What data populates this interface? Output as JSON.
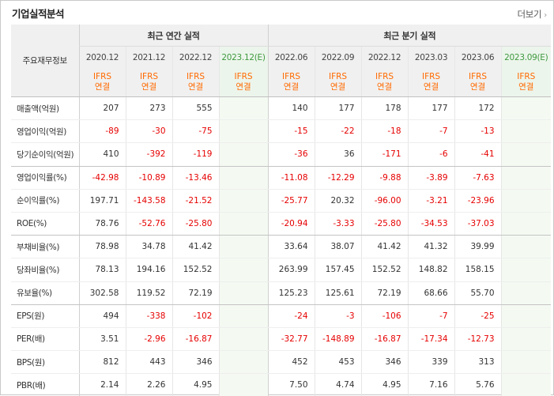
{
  "header": {
    "title": "기업실적분석",
    "more_label": "더보기"
  },
  "table": {
    "row_header_label": "주요재무정보",
    "groups": {
      "annual": "최근 연간 실적",
      "quarterly": "최근 분기 실적"
    },
    "periods": [
      "2020.12",
      "2021.12",
      "2022.12",
      "2023.12(E)",
      "2022.06",
      "2022.09",
      "2022.12",
      "2023.03",
      "2023.06",
      "2023.09(E)"
    ],
    "ifrs_line1": "IFRS",
    "ifrs_line2": "연결",
    "rows": [
      {
        "label": "매출액(억원)",
        "values": [
          "207",
          "273",
          "555",
          "",
          "140",
          "177",
          "178",
          "177",
          "172",
          ""
        ]
      },
      {
        "label": "영업이익(억원)",
        "values": [
          "-89",
          "-30",
          "-75",
          "",
          "-15",
          "-22",
          "-18",
          "-7",
          "-13",
          ""
        ]
      },
      {
        "label": "당기순이익(억원)",
        "values": [
          "410",
          "-392",
          "-119",
          "",
          "-36",
          "36",
          "-171",
          "-6",
          "-41",
          ""
        ]
      },
      {
        "label": "영업이익률(%)",
        "values": [
          "-42.98",
          "-10.89",
          "-13.46",
          "",
          "-11.08",
          "-12.29",
          "-9.88",
          "-3.89",
          "-7.63",
          ""
        ]
      },
      {
        "label": "순이익률(%)",
        "values": [
          "197.71",
          "-143.58",
          "-21.52",
          "",
          "-25.77",
          "20.32",
          "-96.00",
          "-3.21",
          "-23.96",
          ""
        ]
      },
      {
        "label": "ROE(%)",
        "values": [
          "78.76",
          "-52.76",
          "-25.80",
          "",
          "-20.94",
          "-3.33",
          "-25.80",
          "-34.53",
          "-37.03",
          ""
        ]
      },
      {
        "label": "부채비율(%)",
        "values": [
          "78.98",
          "34.78",
          "41.42",
          "",
          "33.64",
          "38.07",
          "41.42",
          "41.32",
          "39.99",
          ""
        ]
      },
      {
        "label": "당좌비율(%)",
        "values": [
          "78.13",
          "194.16",
          "152.52",
          "",
          "263.99",
          "157.45",
          "152.52",
          "148.82",
          "158.15",
          ""
        ]
      },
      {
        "label": "유보율(%)",
        "values": [
          "302.58",
          "119.52",
          "72.19",
          "",
          "125.23",
          "125.61",
          "72.19",
          "68.66",
          "55.70",
          ""
        ]
      },
      {
        "label": "EPS(원)",
        "values": [
          "494",
          "-338",
          "-102",
          "",
          "-24",
          "-3",
          "-106",
          "-7",
          "-25",
          ""
        ]
      },
      {
        "label": "PER(배)",
        "values": [
          "3.51",
          "-2.96",
          "-16.87",
          "",
          "-32.77",
          "-148.89",
          "-16.87",
          "-17.34",
          "-12.73",
          ""
        ]
      },
      {
        "label": "BPS(원)",
        "values": [
          "812",
          "443",
          "346",
          "",
          "452",
          "453",
          "346",
          "339",
          "313",
          ""
        ]
      },
      {
        "label": "PBR(배)",
        "values": [
          "2.14",
          "2.26",
          "4.95",
          "",
          "7.50",
          "4.74",
          "4.95",
          "7.16",
          "5.76",
          ""
        ]
      }
    ]
  },
  "colors": {
    "negative": "#e60000",
    "ifrs": "#ff6a00",
    "estimate": "#3f9a3f"
  }
}
